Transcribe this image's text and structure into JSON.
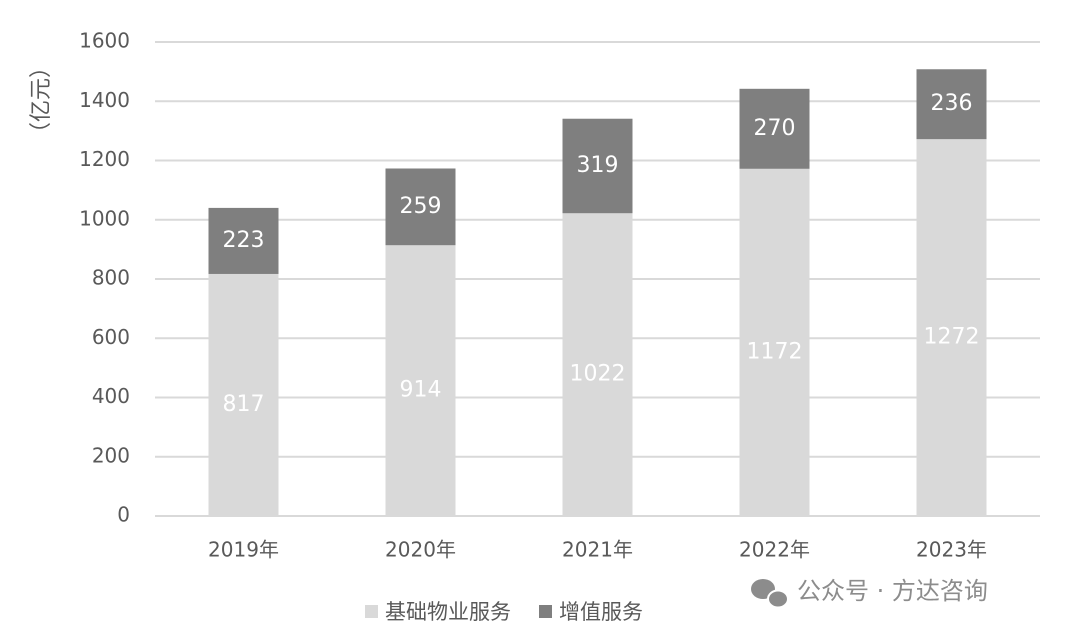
{
  "chart_data": {
    "type": "stacked_bar",
    "y_label": "（亿元）",
    "categories": [
      "2019年",
      "2020年",
      "2021年",
      "2022年",
      "2023年"
    ],
    "series": [
      {
        "name": "基础物业服务",
        "color": "#d9d9d9",
        "label_color": "#ffffff",
        "values": [
          817,
          914,
          1022,
          1172,
          1272
        ]
      },
      {
        "name": "增值服务",
        "color": "#7f7f7f",
        "label_color": "#ffffff",
        "values": [
          223,
          259,
          319,
          270,
          236
        ]
      }
    ],
    "ylim": [
      0,
      1600
    ],
    "yticks": [
      0,
      200,
      400,
      600,
      800,
      1000,
      1200,
      1400,
      1600
    ],
    "grid": true,
    "legend": "bottom",
    "watermark": "公众号 · 方达咨询"
  }
}
